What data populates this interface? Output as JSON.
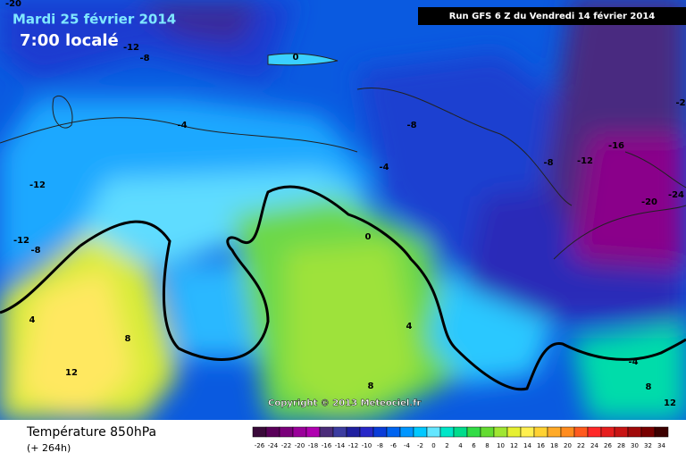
{
  "header": {
    "date": "Mardi 25 février 2014",
    "time": "7:00 localé",
    "run": "Run GFS 6 Z du Vendredi 14 février 2014"
  },
  "copyright": "Copyright © 2013 Meteociel.fr",
  "footer": {
    "title": "Température 850hPa",
    "lead": "(+ 264h)"
  },
  "contour_labels": [
    "-20",
    "-12",
    "-8",
    "0",
    "-4",
    "-8",
    "-2",
    "-16",
    "-12",
    "-8",
    "-4",
    "-12",
    "-24",
    "-20",
    "-12",
    "-8",
    "0",
    "4",
    "8",
    "4",
    "12",
    "8",
    "-4",
    "8",
    "12"
  ],
  "scale": [
    {
      "label": "-26",
      "color": "#3a0a3a"
    },
    {
      "label": "-24",
      "color": "#5a005a"
    },
    {
      "label": "-22",
      "color": "#7a007a"
    },
    {
      "label": "-20",
      "color": "#9a009a"
    },
    {
      "label": "-18",
      "color": "#b000b0"
    },
    {
      "label": "-16",
      "color": "#4b2c7a"
    },
    {
      "label": "-14",
      "color": "#3c3ca0"
    },
    {
      "label": "-12",
      "color": "#2020a0"
    },
    {
      "label": "-10",
      "color": "#2828c8"
    },
    {
      "label": "-8",
      "color": "#0a3cd8"
    },
    {
      "label": "-6",
      "color": "#0064f0"
    },
    {
      "label": "-4",
      "color": "#0096ff"
    },
    {
      "label": "-2",
      "color": "#00c8ff"
    },
    {
      "label": "0",
      "color": "#64e6ff"
    },
    {
      "label": "2",
      "color": "#00e6c8"
    },
    {
      "label": "4",
      "color": "#00dc8c"
    },
    {
      "label": "6",
      "color": "#32dc46"
    },
    {
      "label": "8",
      "color": "#64dc32"
    },
    {
      "label": "10",
      "color": "#a0e632"
    },
    {
      "label": "12",
      "color": "#e6f032"
    },
    {
      "label": "14",
      "color": "#fff050"
    },
    {
      "label": "16",
      "color": "#ffd232"
    },
    {
      "label": "18",
      "color": "#ffaa28"
    },
    {
      "label": "20",
      "color": "#ff8c1e"
    },
    {
      "label": "22",
      "color": "#ff5a1e"
    },
    {
      "label": "24",
      "color": "#ff2828"
    },
    {
      "label": "26",
      "color": "#e61e1e"
    },
    {
      "label": "28",
      "color": "#c81414"
    },
    {
      "label": "30",
      "color": "#a00a0a"
    },
    {
      "label": "32",
      "color": "#780000"
    },
    {
      "label": "34",
      "color": "#3c0000"
    }
  ]
}
